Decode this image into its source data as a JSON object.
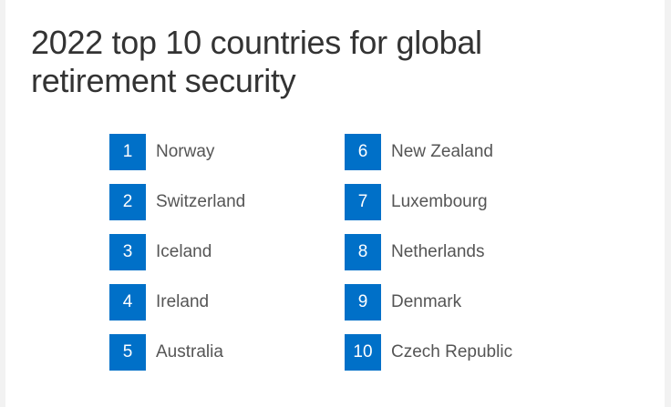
{
  "title": {
    "line1": "2022 top 10 countries for global",
    "line2": "retirement security"
  },
  "accent_color": "#0070c8",
  "rankings": [
    {
      "rank": "1",
      "country": "Norway"
    },
    {
      "rank": "2",
      "country": "Switzerland"
    },
    {
      "rank": "3",
      "country": "Iceland"
    },
    {
      "rank": "4",
      "country": "Ireland"
    },
    {
      "rank": "5",
      "country": "Australia"
    },
    {
      "rank": "6",
      "country": "New Zealand"
    },
    {
      "rank": "7",
      "country": "Luxembourg"
    },
    {
      "rank": "8",
      "country": "Netherlands"
    },
    {
      "rank": "9",
      "country": "Denmark"
    },
    {
      "rank": "10",
      "country": "Czech Republic"
    }
  ]
}
